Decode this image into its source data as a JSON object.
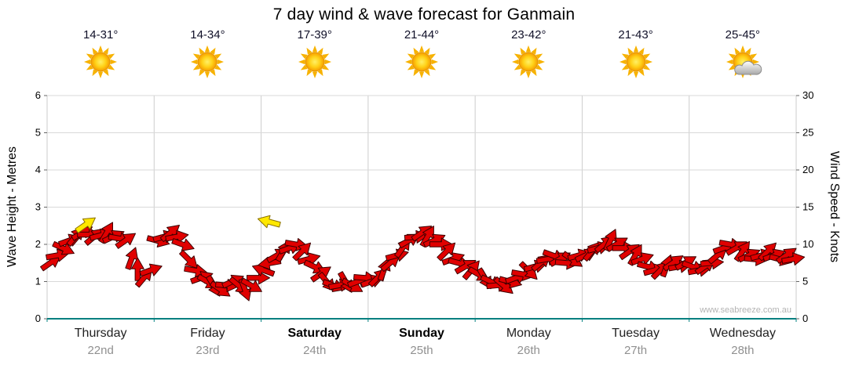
{
  "title": "7 day wind & wave forecast for Ganmain",
  "watermark": "www.seabreeze.com.au",
  "days": [
    {
      "name": "Thursday",
      "date": "22nd",
      "temp": "14-31°",
      "icon": "sunny",
      "weekend": false
    },
    {
      "name": "Friday",
      "date": "23rd",
      "temp": "14-34°",
      "icon": "sunny",
      "weekend": false
    },
    {
      "name": "Saturday",
      "date": "24th",
      "temp": "17-39°",
      "icon": "sunny",
      "weekend": true
    },
    {
      "name": "Sunday",
      "date": "25th",
      "temp": "21-44°",
      "icon": "sunny",
      "weekend": true
    },
    {
      "name": "Monday",
      "date": "26th",
      "temp": "23-42°",
      "icon": "sunny",
      "weekend": false
    },
    {
      "name": "Tuesday",
      "date": "27th",
      "temp": "21-43°",
      "icon": "sunny",
      "weekend": false
    },
    {
      "name": "Wednesday",
      "date": "28th",
      "temp": "25-45°",
      "icon": "partly-cloudy",
      "weekend": false
    }
  ],
  "axes": {
    "left_label": "Wave Height - Metres",
    "right_label": "Wind Speed - Knots",
    "left_ticks": [
      0,
      1,
      2,
      3,
      4,
      5,
      6
    ],
    "right_ticks": [
      0,
      5,
      10,
      15,
      20,
      25,
      30
    ]
  },
  "colors": {
    "arrow": "#E00000",
    "arrow_outline": "#3c0000",
    "highlight": "#FFE800",
    "highlight_outline": "#8a7000",
    "grid": "#cccccc",
    "wave": "#008080",
    "tick_text": "#000000",
    "date_text": "#909090",
    "watermark_text": "#b4b4b4"
  },
  "chart_data": {
    "type": "scatter",
    "title": "7 day wind & wave forecast for Ganmain",
    "x_axis": {
      "label": "time",
      "unit": "hours from Thursday 00:00",
      "range": [
        0,
        168
      ],
      "day_boundary_every_hours": 24
    },
    "left_axis": {
      "label": "Wave Height - Metres",
      "range": [
        0,
        6
      ],
      "ticks": [
        0,
        1,
        2,
        3,
        4,
        5,
        6
      ]
    },
    "right_axis": {
      "label": "Wind Speed - Knots",
      "range": [
        0,
        30
      ],
      "ticks": [
        0,
        5,
        10,
        15,
        20,
        25,
        30
      ]
    },
    "wave_height_series": {
      "name": "Wave Height",
      "constant_value": 0,
      "color": "#008080"
    },
    "wind_series": {
      "name": "Wind Speed",
      "marker": "direction-arrow",
      "point_format": [
        "hour",
        "knots",
        "direction_deg_cw_from_east"
      ],
      "points": [
        [
          0.7,
          7.5,
          -35
        ],
        [
          2.1,
          8.5,
          -10
        ],
        [
          3.5,
          9.5,
          25
        ],
        [
          4.9,
          10.5,
          -20
        ],
        [
          6.3,
          11,
          -50
        ],
        [
          7.7,
          11.5,
          -30
        ],
        [
          9.1,
          11.3,
          0
        ],
        [
          10.5,
          11,
          -40
        ],
        [
          11.9,
          11.2,
          -15
        ],
        [
          13.3,
          11.5,
          -60
        ],
        [
          14.7,
          11,
          -25
        ],
        [
          16.1,
          10.8,
          10
        ],
        [
          17.5,
          10.5,
          -35
        ],
        [
          18.9,
          8,
          -70
        ],
        [
          20.3,
          6.5,
          -90
        ],
        [
          21.7,
          5.5,
          -50
        ],
        [
          23.1,
          6.5,
          -20
        ],
        [
          24.7,
          10.5,
          15
        ],
        [
          26.1,
          11,
          -15
        ],
        [
          27.5,
          11.5,
          -40
        ],
        [
          28.9,
          11,
          -10
        ],
        [
          30.3,
          10,
          20
        ],
        [
          31.7,
          8,
          45
        ],
        [
          33.1,
          6.5,
          10
        ],
        [
          34.5,
          5.5,
          -20
        ],
        [
          35.9,
          5,
          30
        ],
        [
          37.3,
          4.5,
          60
        ],
        [
          38.7,
          4,
          35
        ],
        [
          40.1,
          4.5,
          5
        ],
        [
          41.5,
          5,
          -25
        ],
        [
          42.9,
          4.5,
          40
        ],
        [
          44.3,
          4,
          70
        ],
        [
          45.7,
          4.5,
          30
        ],
        [
          47.1,
          5.5,
          0
        ],
        [
          48.7,
          6.5,
          200
        ],
        [
          50.1,
          7.5,
          170
        ],
        [
          51.5,
          8.5,
          -30
        ],
        [
          52.9,
          9,
          -60
        ],
        [
          54.3,
          9.5,
          -20
        ],
        [
          55.7,
          10,
          10
        ],
        [
          57.1,
          9,
          -45
        ],
        [
          58.5,
          8,
          -15
        ],
        [
          59.9,
          7,
          25
        ],
        [
          61.3,
          6,
          -35
        ],
        [
          62.7,
          5,
          50
        ],
        [
          64.1,
          4.5,
          20
        ],
        [
          65.5,
          4.5,
          -10
        ],
        [
          66.9,
          5,
          60
        ],
        [
          68.3,
          4.5,
          30
        ],
        [
          69.7,
          5,
          -20
        ],
        [
          71.1,
          5.5,
          5
        ],
        [
          72.7,
          5,
          -20
        ],
        [
          74.1,
          5.5,
          -45
        ],
        [
          75.5,
          6.5,
          -70
        ],
        [
          76.9,
          7.5,
          -40
        ],
        [
          78.3,
          8.5,
          -15
        ],
        [
          79.7,
          9.5,
          -55
        ],
        [
          81.1,
          10.5,
          -30
        ],
        [
          82.5,
          11,
          -5
        ],
        [
          83.9,
          11.5,
          -35
        ],
        [
          85.3,
          11,
          -60
        ],
        [
          86.7,
          10.5,
          -25
        ],
        [
          88.1,
          10,
          0
        ],
        [
          89.5,
          9,
          -45
        ],
        [
          90.9,
          8,
          -20
        ],
        [
          92.3,
          7.5,
          15
        ],
        [
          93.7,
          7,
          -30
        ],
        [
          95.1,
          6.5,
          -50
        ],
        [
          96.7,
          6,
          30
        ],
        [
          98.1,
          5.5,
          60
        ],
        [
          99.5,
          5,
          25
        ],
        [
          100.9,
          4.5,
          -5
        ],
        [
          102.3,
          4.5,
          40
        ],
        [
          103.7,
          5,
          15
        ],
        [
          105.1,
          5.5,
          -20
        ],
        [
          106.5,
          6,
          10
        ],
        [
          107.9,
          6.5,
          45
        ],
        [
          109.3,
          7,
          -15
        ],
        [
          110.7,
          7.5,
          -40
        ],
        [
          112.1,
          8,
          -10
        ],
        [
          113.5,
          8.5,
          20
        ],
        [
          114.9,
          8,
          -30
        ],
        [
          116.3,
          7.5,
          5
        ],
        [
          117.7,
          8,
          35
        ],
        [
          119.1,
          8.5,
          -15
        ],
        [
          120.7,
          8.5,
          -25
        ],
        [
          122.1,
          9,
          -50
        ],
        [
          123.5,
          9.5,
          -15
        ],
        [
          124.9,
          10,
          -40
        ],
        [
          126.3,
          10.5,
          -65
        ],
        [
          127.7,
          10,
          -30
        ],
        [
          129.1,
          9.5,
          0
        ],
        [
          130.5,
          9,
          -35
        ],
        [
          131.9,
          8.5,
          -60
        ],
        [
          133.3,
          8,
          -20
        ],
        [
          134.7,
          7,
          15
        ],
        [
          136.1,
          6.5,
          -15
        ],
        [
          137.5,
          6.5,
          -45
        ],
        [
          138.9,
          7,
          -70
        ],
        [
          140.3,
          7.5,
          -35
        ],
        [
          141.7,
          7,
          -10
        ],
        [
          143.1,
          7.5,
          -30
        ],
        [
          144.7,
          7,
          20
        ],
        [
          146.1,
          6.5,
          -10
        ],
        [
          147.5,
          7,
          -35
        ],
        [
          148.9,
          7.5,
          -5
        ],
        [
          150.3,
          8.5,
          -40
        ],
        [
          151.7,
          9.5,
          -20
        ],
        [
          153.1,
          10,
          10
        ],
        [
          154.5,
          9.5,
          -30
        ],
        [
          155.9,
          9,
          -55
        ],
        [
          157.3,
          8.5,
          -25
        ],
        [
          158.7,
          8,
          5
        ],
        [
          160.1,
          8.5,
          -15
        ],
        [
          161.5,
          9,
          -45
        ],
        [
          162.9,
          8.5,
          -20
        ],
        [
          164.3,
          8,
          15
        ],
        [
          165.7,
          8.5,
          -35
        ],
        [
          167.1,
          8,
          -10
        ]
      ]
    },
    "gust_highlights": {
      "color": "#FFE800",
      "point_format": [
        "hour",
        "knots",
        "direction_deg_cw_from_east"
      ],
      "points": [
        [
          8.5,
          12.6,
          -35
        ],
        [
          50,
          13,
          195
        ]
      ]
    }
  }
}
